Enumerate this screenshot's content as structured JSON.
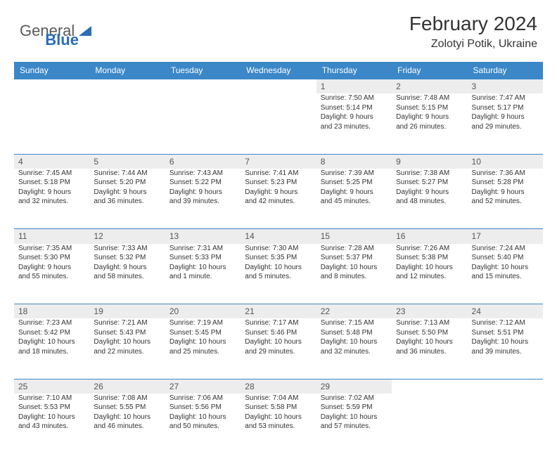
{
  "brand": {
    "part1": "General",
    "part2": "Blue"
  },
  "title": "February 2024",
  "location": "Zolotyi Potik, Ukraine",
  "header_bg": "#3b87c8",
  "daynum_bg": "#ededed",
  "weekdays": [
    "Sunday",
    "Monday",
    "Tuesday",
    "Wednesday",
    "Thursday",
    "Friday",
    "Saturday"
  ],
  "weeks": [
    [
      null,
      null,
      null,
      null,
      {
        "n": "1",
        "sr": "7:50 AM",
        "ss": "5:14 PM",
        "dl1": "9 hours",
        "dl2": "and 23 minutes."
      },
      {
        "n": "2",
        "sr": "7:48 AM",
        "ss": "5:15 PM",
        "dl1": "9 hours",
        "dl2": "and 26 minutes."
      },
      {
        "n": "3",
        "sr": "7:47 AM",
        "ss": "5:17 PM",
        "dl1": "9 hours",
        "dl2": "and 29 minutes."
      }
    ],
    [
      {
        "n": "4",
        "sr": "7:45 AM",
        "ss": "5:18 PM",
        "dl1": "9 hours",
        "dl2": "and 32 minutes."
      },
      {
        "n": "5",
        "sr": "7:44 AM",
        "ss": "5:20 PM",
        "dl1": "9 hours",
        "dl2": "and 36 minutes."
      },
      {
        "n": "6",
        "sr": "7:43 AM",
        "ss": "5:22 PM",
        "dl1": "9 hours",
        "dl2": "and 39 minutes."
      },
      {
        "n": "7",
        "sr": "7:41 AM",
        "ss": "5:23 PM",
        "dl1": "9 hours",
        "dl2": "and 42 minutes."
      },
      {
        "n": "8",
        "sr": "7:39 AM",
        "ss": "5:25 PM",
        "dl1": "9 hours",
        "dl2": "and 45 minutes."
      },
      {
        "n": "9",
        "sr": "7:38 AM",
        "ss": "5:27 PM",
        "dl1": "9 hours",
        "dl2": "and 48 minutes."
      },
      {
        "n": "10",
        "sr": "7:36 AM",
        "ss": "5:28 PM",
        "dl1": "9 hours",
        "dl2": "and 52 minutes."
      }
    ],
    [
      {
        "n": "11",
        "sr": "7:35 AM",
        "ss": "5:30 PM",
        "dl1": "9 hours",
        "dl2": "and 55 minutes."
      },
      {
        "n": "12",
        "sr": "7:33 AM",
        "ss": "5:32 PM",
        "dl1": "9 hours",
        "dl2": "and 58 minutes."
      },
      {
        "n": "13",
        "sr": "7:31 AM",
        "ss": "5:33 PM",
        "dl1": "10 hours",
        "dl2": "and 1 minute."
      },
      {
        "n": "14",
        "sr": "7:30 AM",
        "ss": "5:35 PM",
        "dl1": "10 hours",
        "dl2": "and 5 minutes."
      },
      {
        "n": "15",
        "sr": "7:28 AM",
        "ss": "5:37 PM",
        "dl1": "10 hours",
        "dl2": "and 8 minutes."
      },
      {
        "n": "16",
        "sr": "7:26 AM",
        "ss": "5:38 PM",
        "dl1": "10 hours",
        "dl2": "and 12 minutes."
      },
      {
        "n": "17",
        "sr": "7:24 AM",
        "ss": "5:40 PM",
        "dl1": "10 hours",
        "dl2": "and 15 minutes."
      }
    ],
    [
      {
        "n": "18",
        "sr": "7:23 AM",
        "ss": "5:42 PM",
        "dl1": "10 hours",
        "dl2": "and 18 minutes."
      },
      {
        "n": "19",
        "sr": "7:21 AM",
        "ss": "5:43 PM",
        "dl1": "10 hours",
        "dl2": "and 22 minutes."
      },
      {
        "n": "20",
        "sr": "7:19 AM",
        "ss": "5:45 PM",
        "dl1": "10 hours",
        "dl2": "and 25 minutes."
      },
      {
        "n": "21",
        "sr": "7:17 AM",
        "ss": "5:46 PM",
        "dl1": "10 hours",
        "dl2": "and 29 minutes."
      },
      {
        "n": "22",
        "sr": "7:15 AM",
        "ss": "5:48 PM",
        "dl1": "10 hours",
        "dl2": "and 32 minutes."
      },
      {
        "n": "23",
        "sr": "7:13 AM",
        "ss": "5:50 PM",
        "dl1": "10 hours",
        "dl2": "and 36 minutes."
      },
      {
        "n": "24",
        "sr": "7:12 AM",
        "ss": "5:51 PM",
        "dl1": "10 hours",
        "dl2": "and 39 minutes."
      }
    ],
    [
      {
        "n": "25",
        "sr": "7:10 AM",
        "ss": "5:53 PM",
        "dl1": "10 hours",
        "dl2": "and 43 minutes."
      },
      {
        "n": "26",
        "sr": "7:08 AM",
        "ss": "5:55 PM",
        "dl1": "10 hours",
        "dl2": "and 46 minutes."
      },
      {
        "n": "27",
        "sr": "7:06 AM",
        "ss": "5:56 PM",
        "dl1": "10 hours",
        "dl2": "and 50 minutes."
      },
      {
        "n": "28",
        "sr": "7:04 AM",
        "ss": "5:58 PM",
        "dl1": "10 hours",
        "dl2": "and 53 minutes."
      },
      {
        "n": "29",
        "sr": "7:02 AM",
        "ss": "5:59 PM",
        "dl1": "10 hours",
        "dl2": "and 57 minutes."
      },
      null,
      null
    ]
  ],
  "labels": {
    "sunrise": "Sunrise:",
    "sunset": "Sunset:",
    "daylight": "Daylight:"
  }
}
